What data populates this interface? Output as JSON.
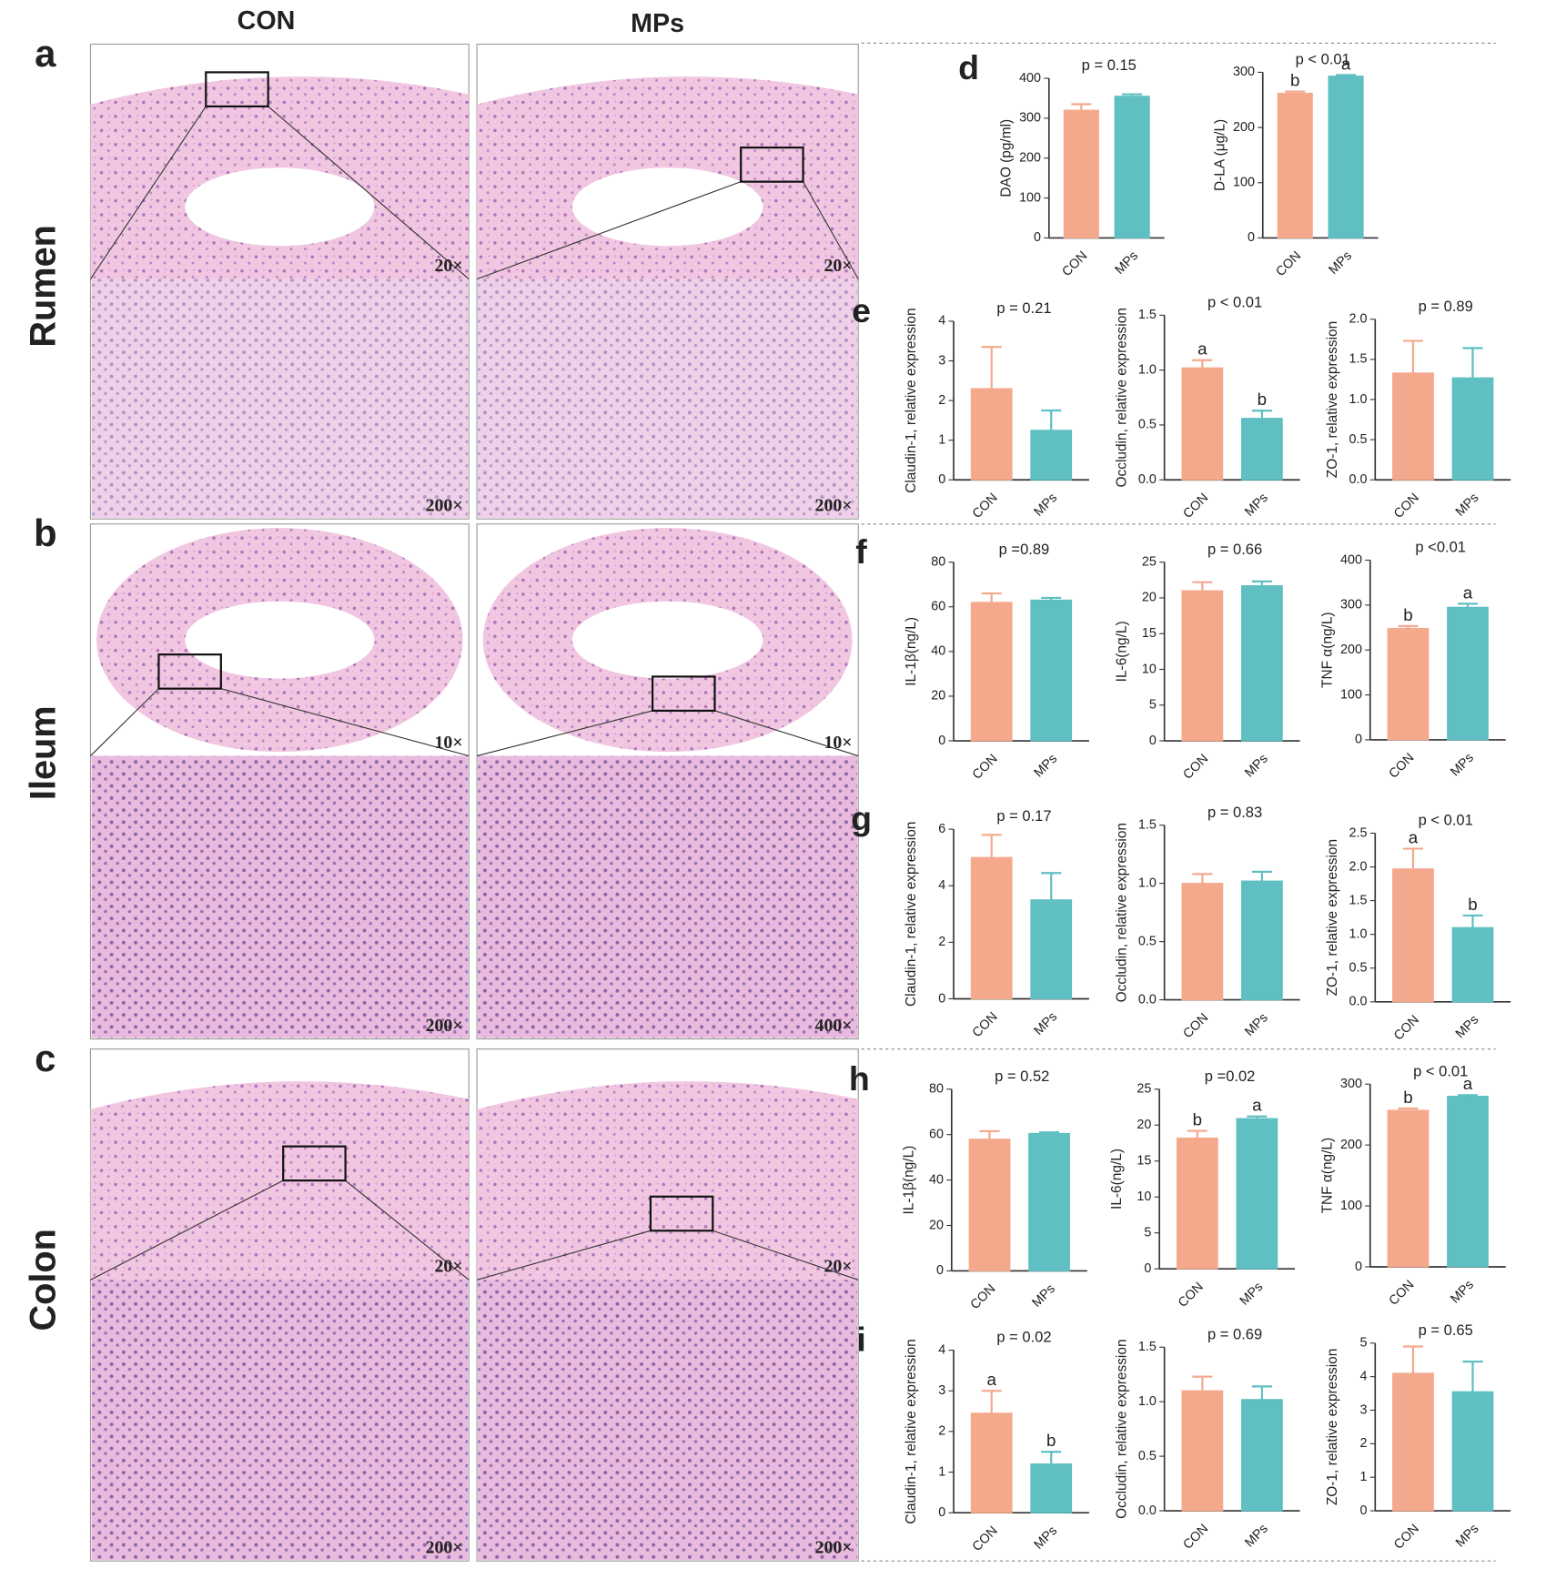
{
  "histology": {
    "columns": [
      "CON",
      "MPs"
    ],
    "rows": [
      {
        "label": "a",
        "tissue": "Rumen",
        "magnifications": [
          "20×",
          "200×",
          "20×",
          "200×"
        ]
      },
      {
        "label": "b",
        "tissue": "Ileum",
        "magnifications": [
          "10×",
          "200×",
          "10×",
          "400×"
        ]
      },
      {
        "label": "c",
        "tissue": "Colon",
        "magnifications": [
          "20×",
          "200×",
          "20×",
          "200×"
        ]
      }
    ]
  },
  "chart_data": [
    {
      "type": "bar",
      "panel_label": "d",
      "ylabel": "DAO (pg/ml)",
      "annotation": "p = 0.15",
      "categories": [
        "CON",
        "MPs"
      ],
      "values": [
        320,
        355
      ],
      "errors": [
        15,
        5
      ],
      "colors": [
        "#f4a98d",
        "#5fbfc2"
      ],
      "ylim": [
        0,
        400
      ],
      "yticks": [
        0,
        100,
        200,
        300,
        400
      ]
    },
    {
      "type": "bar",
      "ylabel": "D-LA (μg/L)",
      "annotation": "p < 0.01",
      "categories": [
        "CON",
        "MPs"
      ],
      "values": [
        262,
        293
      ],
      "errors": [
        3,
        2
      ],
      "group_letters": [
        "b",
        "a"
      ],
      "colors": [
        "#f4a98d",
        "#5fbfc2"
      ],
      "ylim": [
        0,
        300
      ],
      "yticks": [
        0,
        100,
        200,
        300
      ]
    },
    {
      "type": "bar",
      "panel_label": "e",
      "ylabel": "Claudin-1, relative expression",
      "annotation": "p = 0.21",
      "categories": [
        "CON",
        "MPs"
      ],
      "values": [
        2.3,
        1.25
      ],
      "errors": [
        1.05,
        0.5
      ],
      "colors": [
        "#f4a98d",
        "#5fbfc2"
      ],
      "ylim": [
        0,
        4
      ],
      "yticks": [
        0,
        1,
        2,
        3,
        4
      ]
    },
    {
      "type": "bar",
      "ylabel": "Occludin, relative expression",
      "annotation": "p < 0.01",
      "categories": [
        "CON",
        "MPs"
      ],
      "values": [
        1.02,
        0.56
      ],
      "errors": [
        0.07,
        0.07
      ],
      "group_letters": [
        "a",
        "b"
      ],
      "colors": [
        "#f4a98d",
        "#5fbfc2"
      ],
      "ylim": [
        0,
        1.5
      ],
      "yticks": [
        {
          "value": 0,
          "label": "0.0"
        },
        0.5,
        {
          "value": 1,
          "label": "1.0"
        },
        1.5
      ]
    },
    {
      "type": "bar",
      "ylabel": "ZO-1, relative expression",
      "annotation": "p = 0.89",
      "categories": [
        "CON",
        "MPs"
      ],
      "values": [
        1.33,
        1.27
      ],
      "errors": [
        0.4,
        0.37
      ],
      "colors": [
        "#f4a98d",
        "#5fbfc2"
      ],
      "ylim": [
        0,
        2
      ],
      "yticks": [
        {
          "value": 0,
          "label": "0.0"
        },
        0.5,
        {
          "value": 1,
          "label": "1.0"
        },
        1.5,
        {
          "value": 2,
          "label": "2.0"
        }
      ]
    },
    {
      "type": "bar",
      "panel_label": "f",
      "ylabel": "IL-1β(ng/L)",
      "annotation": "p =0.89",
      "categories": [
        "CON",
        "MPs"
      ],
      "values": [
        62,
        63
      ],
      "errors": [
        4,
        1
      ],
      "colors": [
        "#f4a98d",
        "#5fbfc2"
      ],
      "ylim": [
        0,
        80
      ],
      "yticks": [
        0,
        20,
        40,
        60,
        80
      ]
    },
    {
      "type": "bar",
      "ylabel": "IL-6(ng/L)",
      "annotation": "p = 0.66",
      "categories": [
        "CON",
        "MPs"
      ],
      "values": [
        21,
        21.7
      ],
      "errors": [
        1.2,
        0.6
      ],
      "colors": [
        "#f4a98d",
        "#5fbfc2"
      ],
      "ylim": [
        0,
        25
      ],
      "yticks": [
        0,
        5,
        10,
        15,
        20,
        25
      ]
    },
    {
      "type": "bar",
      "ylabel": "TNF α(ng/L)",
      "annotation": "p <0.01",
      "categories": [
        "CON",
        "MPs"
      ],
      "values": [
        248,
        295
      ],
      "errors": [
        5,
        8
      ],
      "group_letters": [
        "b",
        "a"
      ],
      "colors": [
        "#f4a98d",
        "#5fbfc2"
      ],
      "ylim": [
        0,
        400
      ],
      "yticks": [
        0,
        100,
        200,
        300,
        400
      ]
    },
    {
      "type": "bar",
      "panel_label": "g",
      "ylabel": "Claudin-1, relative expression",
      "annotation": "p = 0.17",
      "categories": [
        "CON",
        "MPs"
      ],
      "values": [
        5.0,
        3.5
      ],
      "errors": [
        0.8,
        0.95
      ],
      "colors": [
        "#f4a98d",
        "#5fbfc2"
      ],
      "ylim": [
        0,
        6
      ],
      "yticks": [
        0,
        2,
        4,
        6
      ]
    },
    {
      "type": "bar",
      "ylabel": "Occludin, relative expression",
      "annotation": "p = 0.83",
      "categories": [
        "CON",
        "MPs"
      ],
      "values": [
        1.0,
        1.02
      ],
      "errors": [
        0.08,
        0.08
      ],
      "colors": [
        "#f4a98d",
        "#5fbfc2"
      ],
      "ylim": [
        0,
        1.5
      ],
      "yticks": [
        {
          "value": 0,
          "label": "0.0"
        },
        0.5,
        {
          "value": 1,
          "label": "1.0"
        },
        1.5
      ]
    },
    {
      "type": "bar",
      "ylabel": "ZO-1, relative expression",
      "annotation": "p < 0.01",
      "categories": [
        "CON",
        "MPs"
      ],
      "values": [
        1.97,
        1.1
      ],
      "errors": [
        0.3,
        0.18
      ],
      "group_letters": [
        "a",
        "b"
      ],
      "colors": [
        "#f4a98d",
        "#5fbfc2"
      ],
      "ylim": [
        0,
        2.5
      ],
      "yticks": [
        {
          "value": 0,
          "label": "0.0"
        },
        0.5,
        {
          "value": 1,
          "label": "1.0"
        },
        1.5,
        {
          "value": 2,
          "label": "2.0"
        },
        2.5
      ]
    },
    {
      "type": "bar",
      "panel_label": "h",
      "ylabel": "IL-1β(ng/L)",
      "annotation": "p = 0.52",
      "categories": [
        "CON",
        "MPs"
      ],
      "values": [
        58,
        60.5
      ],
      "errors": [
        3.5,
        0.5
      ],
      "colors": [
        "#f4a98d",
        "#5fbfc2"
      ],
      "ylim": [
        0,
        80
      ],
      "yticks": [
        0,
        20,
        40,
        60,
        80
      ]
    },
    {
      "type": "bar",
      "ylabel": "IL-6(ng/L)",
      "annotation": "p =0.02",
      "categories": [
        "CON",
        "MPs"
      ],
      "values": [
        18.2,
        20.9
      ],
      "errors": [
        1,
        0.3
      ],
      "group_letters": [
        "b",
        "a"
      ],
      "colors": [
        "#f4a98d",
        "#5fbfc2"
      ],
      "ylim": [
        0,
        25
      ],
      "yticks": [
        0,
        5,
        10,
        15,
        20,
        25
      ]
    },
    {
      "type": "bar",
      "ylabel": "TNF α(ng/L)",
      "annotation": "p < 0.01",
      "categories": [
        "CON",
        "MPs"
      ],
      "values": [
        257,
        280
      ],
      "errors": [
        3,
        2
      ],
      "group_letters": [
        "b",
        "a"
      ],
      "colors": [
        "#f4a98d",
        "#5fbfc2"
      ],
      "ylim": [
        0,
        300
      ],
      "yticks": [
        0,
        100,
        200,
        300
      ]
    },
    {
      "type": "bar",
      "panel_label": "i",
      "ylabel": "Claudin-1, relative expression",
      "annotation": "p = 0.02",
      "categories": [
        "CON",
        "MPs"
      ],
      "values": [
        2.45,
        1.2
      ],
      "errors": [
        0.55,
        0.3
      ],
      "group_letters": [
        "a",
        "b"
      ],
      "colors": [
        "#f4a98d",
        "#5fbfc2"
      ],
      "ylim": [
        0,
        4
      ],
      "yticks": [
        0,
        1,
        2,
        3,
        4
      ]
    },
    {
      "type": "bar",
      "ylabel": "Occludin, relative expression",
      "annotation": "p = 0.69",
      "categories": [
        "CON",
        "MPs"
      ],
      "values": [
        1.1,
        1.02
      ],
      "errors": [
        0.13,
        0.12
      ],
      "colors": [
        "#f4a98d",
        "#5fbfc2"
      ],
      "ylim": [
        0,
        1.5
      ],
      "yticks": [
        {
          "value": 0,
          "label": "0.0"
        },
        0.5,
        {
          "value": 1,
          "label": "1.0"
        },
        1.5
      ]
    },
    {
      "type": "bar",
      "ylabel": "ZO-1, relative expression",
      "annotation": "p = 0.65",
      "categories": [
        "CON",
        "MPs"
      ],
      "values": [
        4.1,
        3.55
      ],
      "errors": [
        0.8,
        0.9
      ],
      "colors": [
        "#f4a98d",
        "#5fbfc2"
      ],
      "ylim": [
        0,
        5
      ],
      "yticks": [
        0,
        1,
        2,
        3,
        4,
        5
      ]
    }
  ]
}
